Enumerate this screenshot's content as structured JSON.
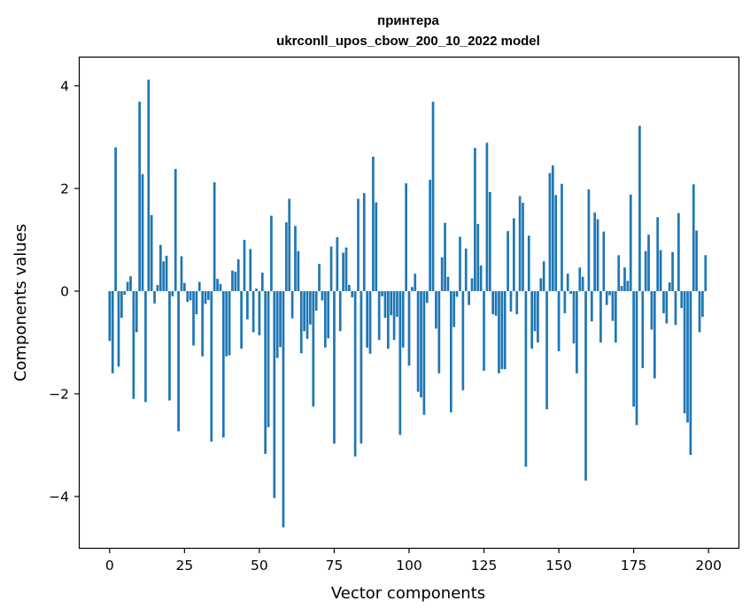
{
  "chart_data": {
    "type": "bar",
    "title": "принтера",
    "subtitle": "ukrconll_upos_cbow_200_10_2022 model",
    "xlabel": "Vector components",
    "ylabel": "Components values",
    "xlim": [
      -10,
      210
    ],
    "ylim": [
      -5.0,
      4.55
    ],
    "xticks": [
      0,
      25,
      50,
      75,
      100,
      125,
      150,
      175,
      200
    ],
    "yticks": [
      -4,
      -2,
      0,
      2,
      4
    ],
    "ytick_labels": [
      "−4",
      "−2",
      "0",
      "2",
      "4"
    ],
    "grid": false,
    "bar_color": "#1f77b4",
    "values": [
      -0.97,
      -1.6,
      2.8,
      -1.47,
      -0.52,
      -0.07,
      0.18,
      0.29,
      -2.1,
      -0.8,
      3.69,
      2.28,
      -2.16,
      4.12,
      1.48,
      -0.24,
      0.12,
      0.9,
      0.58,
      0.69,
      -2.13,
      -0.1,
      2.38,
      -2.73,
      0.68,
      0.16,
      -0.21,
      -0.18,
      -1.06,
      -0.45,
      0.18,
      -1.27,
      -0.25,
      -0.17,
      -2.93,
      2.12,
      0.24,
      0.14,
      -2.85,
      -1.27,
      -1.25,
      0.4,
      0.38,
      0.62,
      -1.12,
      1.0,
      -0.55,
      0.82,
      -0.8,
      0.05,
      -0.86,
      0.36,
      -3.17,
      -2.65,
      1.47,
      -4.03,
      -1.3,
      -1.09,
      -4.6,
      1.34,
      1.8,
      -0.53,
      1.27,
      0.78,
      -1.21,
      -0.78,
      -0.93,
      -0.65,
      -2.25,
      -0.38,
      0.53,
      -0.18,
      -1.1,
      -0.92,
      0.87,
      -2.97,
      1.05,
      -0.78,
      0.75,
      0.85,
      0.12,
      -0.12,
      -3.22,
      1.8,
      -2.97,
      1.91,
      -1.1,
      -1.22,
      2.62,
      1.73,
      -0.95,
      -0.1,
      -0.52,
      -1.12,
      -0.47,
      -0.95,
      -0.5,
      -2.8,
      -1.1,
      2.1,
      -1.45,
      0.08,
      0.34,
      -1.96,
      -2.07,
      -2.41,
      -0.23,
      2.17,
      3.69,
      -0.73,
      -1.6,
      0.66,
      1.33,
      0.28,
      -2.36,
      -0.7,
      -0.11,
      1.06,
      -1.93,
      0.83,
      -0.27,
      0.25,
      2.79,
      1.31,
      0.5,
      -1.55,
      2.89,
      1.93,
      -0.45,
      -0.48,
      -1.6,
      -1.52,
      -1.52,
      1.17,
      -0.4,
      1.42,
      -0.45,
      1.85,
      1.72,
      -3.42,
      1.08,
      -1.12,
      -0.78,
      -1.0,
      0.25,
      0.58,
      -2.3,
      2.3,
      2.45,
      1.87,
      -1.17,
      2.09,
      -0.43,
      0.34,
      -0.05,
      -1.02,
      -1.6,
      0.46,
      0.28,
      -3.69,
      1.98,
      -0.59,
      1.53,
      1.4,
      -1.0,
      1.16,
      -0.27,
      -0.08,
      -0.58,
      -1.0,
      0.7,
      0.1,
      0.46,
      0.2,
      1.88,
      -2.25,
      -2.61,
      3.22,
      -1.5,
      0.78,
      1.1,
      -0.75,
      -1.7,
      1.44,
      0.8,
      -0.43,
      -0.63,
      0.17,
      0.76,
      -0.66,
      1.52,
      -0.33,
      -2.38,
      -2.56,
      -3.19,
      2.08,
      1.18,
      -0.8,
      -0.5,
      0.7
    ]
  }
}
